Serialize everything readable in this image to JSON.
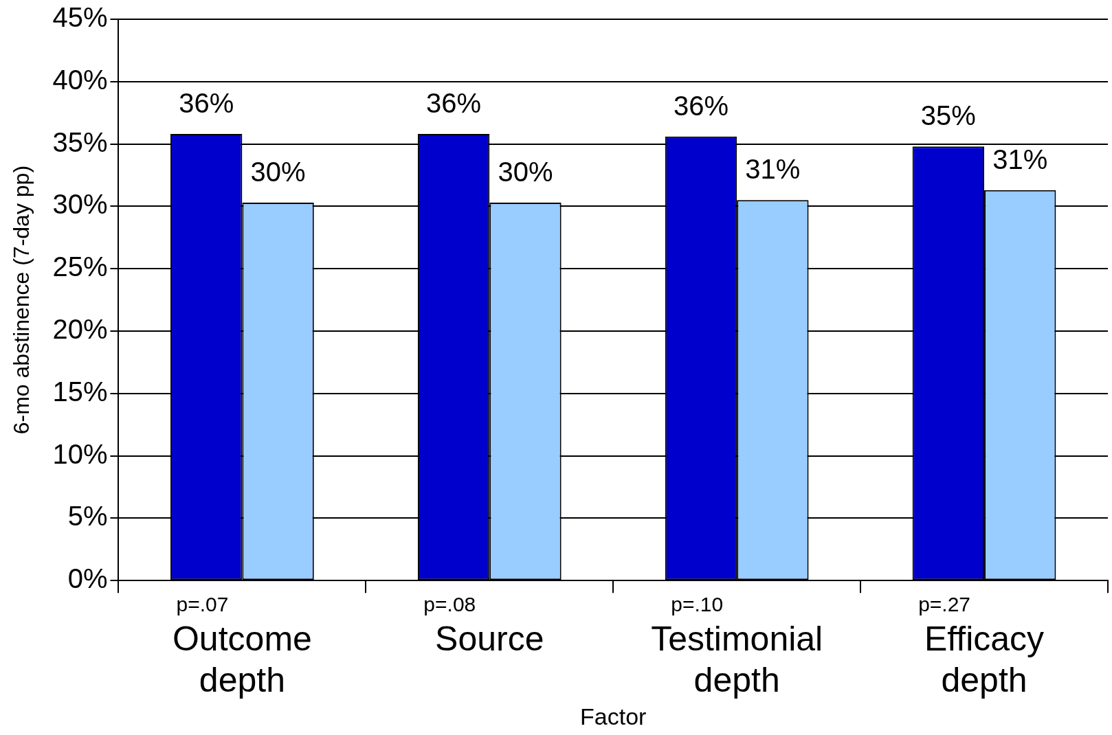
{
  "chart_data": {
    "type": "bar",
    "ylabel": "6-mo abstinence (7-day pp)",
    "xlabel": "Factor",
    "categories": [
      "Outcome depth",
      "Source",
      "Testimonial depth",
      "Efficacy depth"
    ],
    "series": [
      {
        "color": "#0000cc",
        "values": [
          35.8,
          35.8,
          35.6,
          34.8
        ],
        "value_labels": [
          "36%",
          "36%",
          "36%",
          "35%"
        ]
      },
      {
        "color": "#99ccff",
        "values": [
          30.3,
          30.3,
          30.5,
          31.3
        ],
        "value_labels": [
          "30%",
          "30%",
          "31%",
          "31%"
        ]
      }
    ],
    "ylim": [
      0,
      45
    ],
    "yticks": [
      {
        "value": 0,
        "label": "0%"
      },
      {
        "value": 5,
        "label": "5%"
      },
      {
        "value": 10,
        "label": "10%"
      },
      {
        "value": 15,
        "label": "15%"
      },
      {
        "value": 20,
        "label": "20%"
      },
      {
        "value": 25,
        "label": "25%"
      },
      {
        "value": 30,
        "label": "30%"
      },
      {
        "value": 35,
        "label": "35%"
      },
      {
        "value": 40,
        "label": "40%"
      },
      {
        "value": 45,
        "label": "45%"
      }
    ],
    "grid": "y",
    "legend": false,
    "annotations": [
      "p=.07",
      "p=.08",
      "p=.10",
      "p=.27"
    ]
  }
}
